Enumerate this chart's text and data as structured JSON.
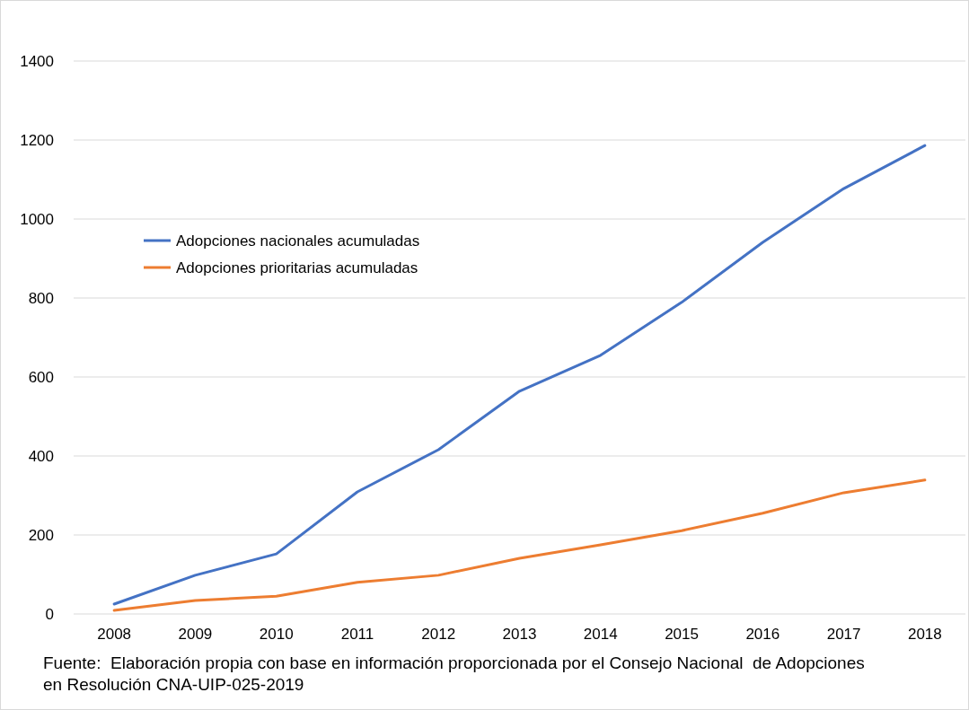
{
  "chart_data": {
    "type": "line",
    "categories": [
      "2008",
      "2009",
      "2010",
      "2011",
      "2012",
      "2013",
      "2014",
      "2015",
      "2016",
      "2017",
      "2018"
    ],
    "series": [
      {
        "name": "Adopciones nacionales acumuladas",
        "color": "#4472c4",
        "values": [
          25,
          98,
          152,
          309,
          416,
          564,
          655,
          789,
          941,
          1077,
          1186
        ]
      },
      {
        "name": "Adopciones prioritarias acumuladas",
        "color": "#ed7d31",
        "values": [
          9,
          34,
          45,
          80,
          98,
          141,
          175,
          211,
          255,
          307,
          339
        ]
      }
    ],
    "ylim": [
      0,
      1400
    ],
    "yticks": [
      0,
      200,
      400,
      600,
      800,
      1000,
      1200,
      1400
    ],
    "grid": "y",
    "legend": "top left",
    "marker": "none",
    "line_style": "solid",
    "annotations": [
      "Fuente:  Elaboración propia con base en información proporcionada por el Consejo Nacional  de Adopciones en Resolución CNA-UIP-025-2019"
    ]
  }
}
